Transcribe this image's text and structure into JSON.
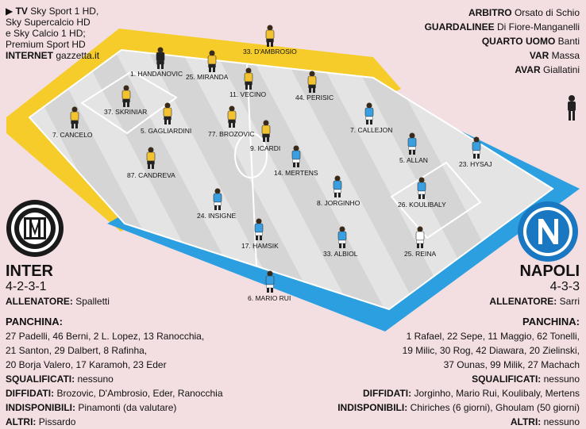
{
  "broadcast": {
    "tv_label": "TV",
    "tv_lines": [
      "Sky Sport 1 HD,",
      "Sky Supercalcio HD",
      "e Sky Calcio 1 HD;",
      "Premium Sport HD"
    ],
    "internet_label": "INTERNET",
    "internet_value": "gazzetta.it"
  },
  "officials": [
    {
      "label": "ARBITRO",
      "value": "Orsato di Schio"
    },
    {
      "label": "GUARDALINEE",
      "value": "Di Fiore-Manganelli"
    },
    {
      "label": "QUARTO UOMO",
      "value": "Banti"
    },
    {
      "label": "VAR",
      "value": "Massa"
    },
    {
      "label": "AVAR",
      "value": "Giallatini"
    }
  ],
  "home": {
    "name": "INTER",
    "formation": "4-2-3-1",
    "coach_label": "ALLENATORE:",
    "coach": "Spalletti",
    "bench_label": "PANCHINA:",
    "bench_lines": [
      "27 Padelli, 46 Berni, 2 L. Lopez, 13 Ranocchia,",
      "21 Santon, 29 Dalbert, 8 Rafinha,",
      "20 Borja Valero, 17 Karamoh, 23 Eder"
    ],
    "suspended_label": "SQUALIFICATI:",
    "suspended": "nessuno",
    "warned_label": "DIFFIDATI:",
    "warned": "Brozovic, D'Ambrosio, Eder, Ranocchia",
    "unavailable_label": "INDISPONIBILI:",
    "unavailable": "Pinamonti (da valutare)",
    "others_label": "ALTRI:",
    "others": "Pissardo",
    "kit_color": "#f2c230",
    "players": [
      {
        "label": "1. HANDANOVIC",
        "keeper": true
      },
      {
        "label": "25. MIRANDA"
      },
      {
        "label": "33. D'AMBROSIO"
      },
      {
        "label": "37. SKRINIAR"
      },
      {
        "label": "11. VECINO"
      },
      {
        "label": "44. PERISIC"
      },
      {
        "label": "7. CANCELO"
      },
      {
        "label": "5. GAGLIARDINI"
      },
      {
        "label": "77. BROZOVIC"
      },
      {
        "label": "9. ICARDI"
      },
      {
        "label": "87. CANDREVA"
      }
    ]
  },
  "away": {
    "name": "NAPOLI",
    "formation": "4-3-3",
    "coach_label": "ALLENATORE:",
    "coach": "Sarri",
    "bench_label": "PANCHINA:",
    "bench_lines": [
      "1 Rafael, 22 Sepe, 11 Maggio, 62 Tonelli,",
      "19 Milic, 30 Rog, 42 Diawara, 20 Zielinski,",
      "37 Ounas, 99 Milik, 27 Machach"
    ],
    "suspended_label": "SQUALIFICATI:",
    "suspended": "nessuno",
    "warned_label": "DIFFIDATI:",
    "warned": "Jorginho, Mario Rui, Koulibaly, Mertens",
    "unavailable_label": "INDISPONIBILI:",
    "unavailable": "Chiriches (6 giorni), Ghoulam (50 giorni)",
    "others_label": "ALTRI:",
    "others": "nessuno",
    "kit_color": "#3a9fe0",
    "players": [
      {
        "label": "7. CALLEJON"
      },
      {
        "label": "5. ALLAN"
      },
      {
        "label": "23. HYSAJ"
      },
      {
        "label": "14. MERTENS"
      },
      {
        "label": "8. JORGINHO"
      },
      {
        "label": "26. KOULIBALY"
      },
      {
        "label": "24. INSIGNE"
      },
      {
        "label": "17. HAMSIK"
      },
      {
        "label": "33. ALBIOL"
      },
      {
        "label": "25. REINA",
        "keeper": true
      },
      {
        "label": "6. MARIO RUI"
      }
    ]
  },
  "colors": {
    "inter_frame": "#f5cc2a",
    "napoli_frame": "#2b9fe0",
    "pitch_light": "#e4e4e4",
    "pitch_dark": "#c8c8c8"
  }
}
